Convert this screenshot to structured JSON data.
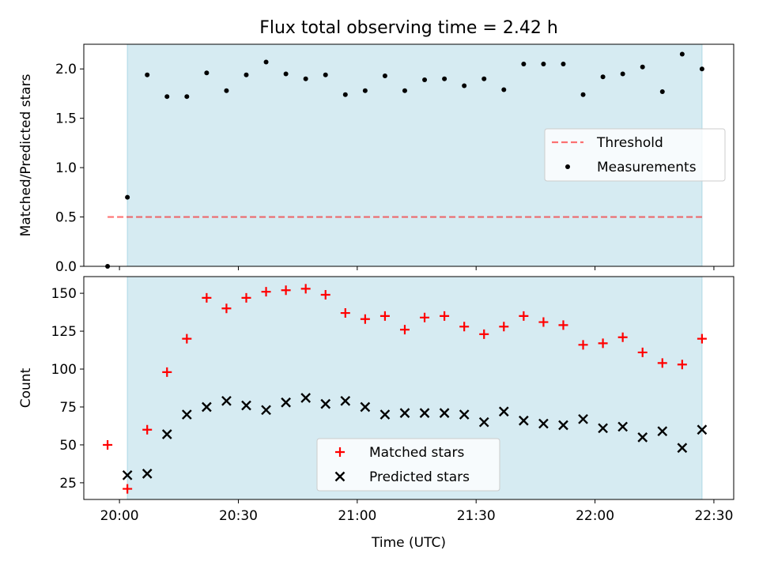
{
  "title": "Flux total observing time = 2.42 h",
  "colors": {
    "band": "#add8e6",
    "threshold": "#ff0000",
    "measurements": "#000000",
    "matched": "#ff0000",
    "predicted": "#000000"
  },
  "chart_data": [
    {
      "type": "scatter",
      "title": "Flux total observing time = 2.42 h",
      "xlabel": "",
      "ylabel": "Matched/Predicted stars",
      "xlim": [
        "19:51",
        "22:35"
      ],
      "ylim": [
        0,
        2.25
      ],
      "yticks": [
        "0.0",
        "0.5",
        "1.0",
        "1.5",
        "2.0"
      ],
      "shaded_interval": [
        "20:02",
        "22:27"
      ],
      "legend": {
        "placement": "center-right",
        "entries": [
          "Threshold",
          "Measurements"
        ]
      },
      "threshold": {
        "name": "Threshold",
        "y": 0.5,
        "x": [
          "19:57",
          "22:27"
        ],
        "style": "dashed"
      },
      "series": [
        {
          "name": "Measurements",
          "marker": "dot",
          "points": [
            [
              "19:57",
              0.0
            ],
            [
              "20:02",
              0.7
            ],
            [
              "20:07",
              1.94
            ],
            [
              "20:12",
              1.72
            ],
            [
              "20:17",
              1.72
            ],
            [
              "20:22",
              1.96
            ],
            [
              "20:27",
              1.78
            ],
            [
              "20:32",
              1.94
            ],
            [
              "20:37",
              2.07
            ],
            [
              "20:42",
              1.95
            ],
            [
              "20:47",
              1.9
            ],
            [
              "20:52",
              1.94
            ],
            [
              "20:57",
              1.74
            ],
            [
              "21:02",
              1.78
            ],
            [
              "21:07",
              1.93
            ],
            [
              "21:12",
              1.78
            ],
            [
              "21:17",
              1.89
            ],
            [
              "21:22",
              1.9
            ],
            [
              "21:27",
              1.83
            ],
            [
              "21:32",
              1.9
            ],
            [
              "21:37",
              1.79
            ],
            [
              "21:42",
              2.05
            ],
            [
              "21:47",
              2.05
            ],
            [
              "21:52",
              2.05
            ],
            [
              "21:57",
              1.74
            ],
            [
              "22:02",
              1.92
            ],
            [
              "22:07",
              1.95
            ],
            [
              "22:12",
              2.02
            ],
            [
              "22:17",
              1.77
            ],
            [
              "22:22",
              2.15
            ],
            [
              "22:27",
              2.0
            ]
          ]
        }
      ]
    },
    {
      "type": "scatter",
      "title": "",
      "xlabel": "Time (UTC)",
      "ylabel": "Count",
      "xlim": [
        "19:51",
        "22:35"
      ],
      "ylim": [
        14,
        161
      ],
      "yticks": [
        "25",
        "50",
        "75",
        "100",
        "125",
        "150"
      ],
      "xticks": [
        "20:00",
        "20:30",
        "21:00",
        "21:30",
        "22:00",
        "22:30"
      ],
      "shaded_interval": [
        "20:02",
        "22:27"
      ],
      "legend": {
        "placement": "lower-center",
        "entries": [
          "Matched stars",
          "Predicted stars"
        ]
      },
      "series": [
        {
          "name": "Matched stars",
          "marker": "plus",
          "points": [
            [
              "19:57",
              50
            ],
            [
              "20:02",
              21
            ],
            [
              "20:07",
              60
            ],
            [
              "20:12",
              98
            ],
            [
              "20:17",
              120
            ],
            [
              "20:22",
              147
            ],
            [
              "20:27",
              140
            ],
            [
              "20:32",
              147
            ],
            [
              "20:37",
              151
            ],
            [
              "20:42",
              152
            ],
            [
              "20:47",
              153
            ],
            [
              "20:52",
              149
            ],
            [
              "20:57",
              137
            ],
            [
              "21:02",
              133
            ],
            [
              "21:07",
              135
            ],
            [
              "21:12",
              126
            ],
            [
              "21:17",
              134
            ],
            [
              "21:22",
              135
            ],
            [
              "21:27",
              128
            ],
            [
              "21:32",
              123
            ],
            [
              "21:37",
              128
            ],
            [
              "21:42",
              135
            ],
            [
              "21:47",
              131
            ],
            [
              "21:52",
              129
            ],
            [
              "21:57",
              116
            ],
            [
              "22:02",
              117
            ],
            [
              "22:07",
              121
            ],
            [
              "22:12",
              111
            ],
            [
              "22:17",
              104
            ],
            [
              "22:22",
              103
            ],
            [
              "22:27",
              120
            ]
          ]
        },
        {
          "name": "Predicted stars",
          "marker": "x",
          "points": [
            [
              "20:02",
              30
            ],
            [
              "20:07",
              31
            ],
            [
              "20:12",
              57
            ],
            [
              "20:17",
              70
            ],
            [
              "20:22",
              75
            ],
            [
              "20:27",
              79
            ],
            [
              "20:32",
              76
            ],
            [
              "20:37",
              73
            ],
            [
              "20:42",
              78
            ],
            [
              "20:47",
              81
            ],
            [
              "20:52",
              77
            ],
            [
              "20:57",
              79
            ],
            [
              "21:02",
              75
            ],
            [
              "21:07",
              70
            ],
            [
              "21:12",
              71
            ],
            [
              "21:17",
              71
            ],
            [
              "21:22",
              71
            ],
            [
              "21:27",
              70
            ],
            [
              "21:32",
              65
            ],
            [
              "21:37",
              72
            ],
            [
              "21:42",
              66
            ],
            [
              "21:47",
              64
            ],
            [
              "21:52",
              63
            ],
            [
              "21:57",
              67
            ],
            [
              "22:02",
              61
            ],
            [
              "22:07",
              62
            ],
            [
              "22:12",
              55
            ],
            [
              "22:17",
              59
            ],
            [
              "22:22",
              48
            ],
            [
              "22:27",
              60
            ]
          ]
        }
      ]
    }
  ]
}
